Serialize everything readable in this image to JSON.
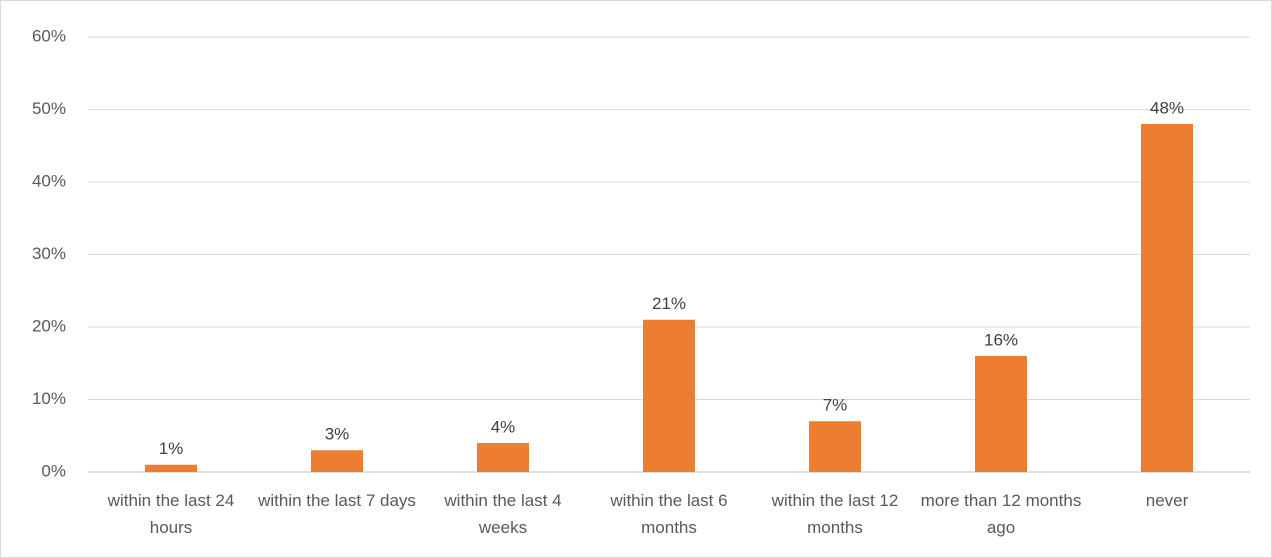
{
  "chart_data": {
    "type": "bar",
    "categories": [
      "within the last 24 hours",
      "within the last 7 days",
      "within the last 4 weeks",
      "within the last 6 months",
      "within the last 12 months",
      "more than 12 months ago",
      "never"
    ],
    "values": [
      1,
      3,
      4,
      21,
      7,
      16,
      48
    ],
    "value_labels": [
      "1%",
      "3%",
      "4%",
      "21%",
      "7%",
      "16%",
      "48%"
    ],
    "color": "#ed7d31",
    "ylim": [
      0,
      60
    ],
    "yticks": [
      {
        "value": 0,
        "label": "0%"
      },
      {
        "value": 10,
        "label": "10%"
      },
      {
        "value": 20,
        "label": "20%"
      },
      {
        "value": 30,
        "label": "30%"
      },
      {
        "value": 40,
        "label": "40%"
      },
      {
        "value": 50,
        "label": "50%"
      },
      {
        "value": 60,
        "label": "60%"
      }
    ],
    "grid": true
  }
}
